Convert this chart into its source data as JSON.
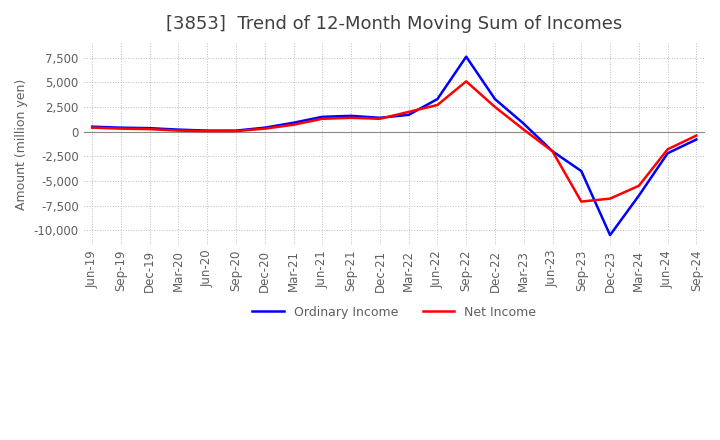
{
  "title": "[3853]  Trend of 12-Month Moving Sum of Incomes",
  "ylabel": "Amount (million yen)",
  "ylim": [
    -11500,
    9000
  ],
  "yticks": [
    -10000,
    -7500,
    -5000,
    -2500,
    0,
    2500,
    5000,
    7500
  ],
  "legend_labels": [
    "Ordinary Income",
    "Net Income"
  ],
  "line_colors": [
    "#0000ff",
    "#ff0000"
  ],
  "background_color": "#ffffff",
  "grid_color": "#bbbbbb",
  "title_color": "#404040",
  "axis_label_color": "#606060",
  "dates": [
    "Jun-19",
    "Sep-19",
    "Dec-19",
    "Mar-20",
    "Jun-20",
    "Sep-20",
    "Dec-20",
    "Mar-21",
    "Jun-21",
    "Sep-21",
    "Dec-21",
    "Mar-22",
    "Jun-22",
    "Sep-22",
    "Dec-22",
    "Mar-23",
    "Jun-23",
    "Sep-23",
    "Dec-23",
    "Mar-24",
    "Jun-24",
    "Sep-24"
  ],
  "ordinary_income": [
    500,
    400,
    350,
    200,
    100,
    100,
    400,
    900,
    1500,
    1600,
    1400,
    1700,
    3300,
    7600,
    3300,
    800,
    -2000,
    -4000,
    -10500,
    -6500,
    -2200,
    -800
  ],
  "net_income": [
    400,
    300,
    250,
    100,
    50,
    50,
    300,
    700,
    1300,
    1400,
    1300,
    2000,
    2700,
    5100,
    2500,
    200,
    -2000,
    -7100,
    -6800,
    -5500,
    -1800,
    -400
  ]
}
